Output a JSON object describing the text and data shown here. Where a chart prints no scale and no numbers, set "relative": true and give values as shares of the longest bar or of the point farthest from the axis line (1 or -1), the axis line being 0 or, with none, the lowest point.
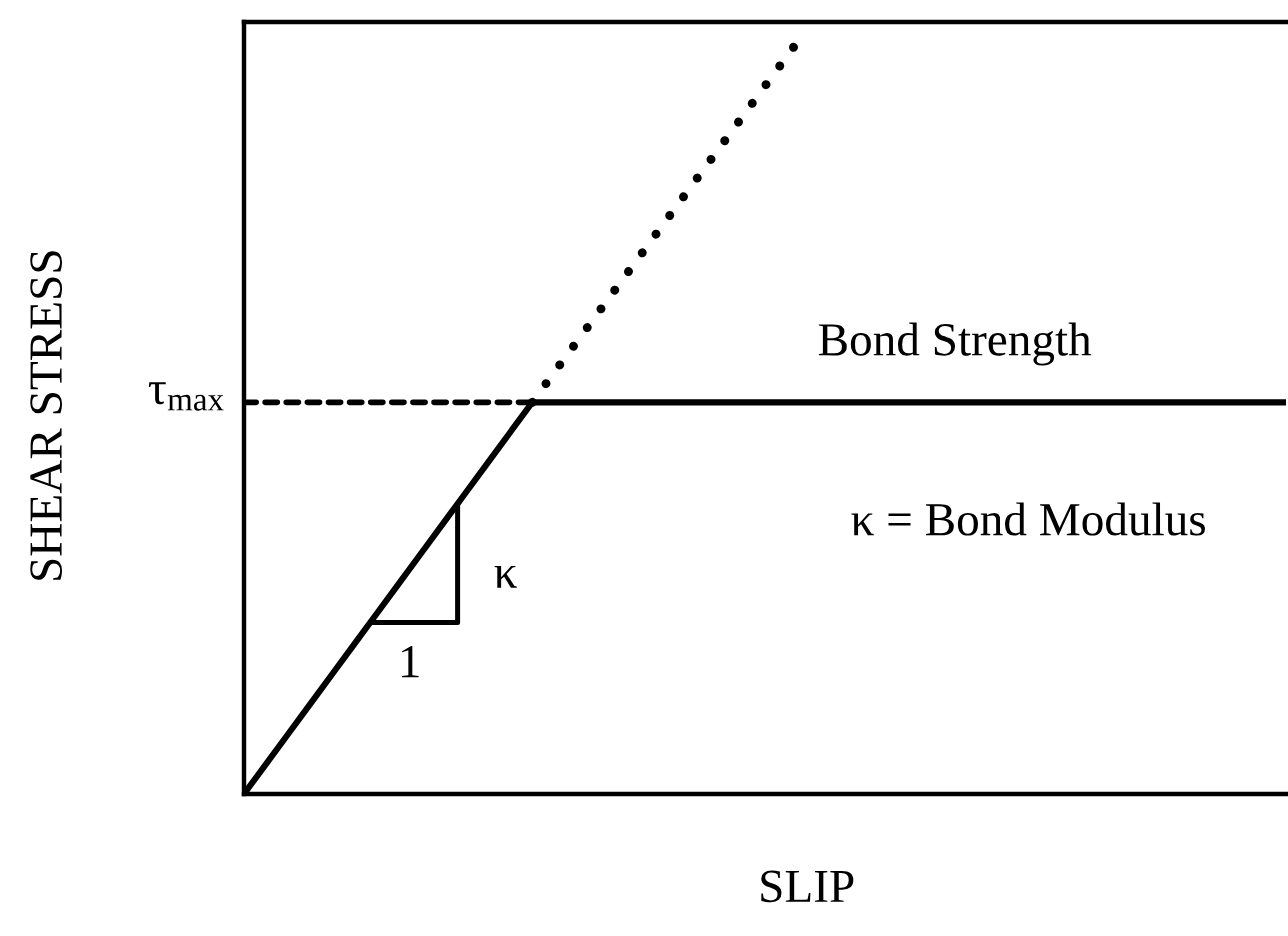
{
  "chart_data": {
    "type": "line",
    "relative": true,
    "xlabel": "SLIP",
    "ylabel": "SHEAR STRESS",
    "categories": [
      null,
      null,
      null,
      null,
      null,
      null,
      null,
      null,
      null,
      null,
      null,
      null,
      null,
      null,
      null,
      null,
      null,
      null,
      null,
      null,
      null,
      null,
      null,
      null,
      null,
      null,
      null,
      null,
      null,
      null,
      null,
      null,
      null,
      null,
      null,
      null,
      null,
      null,
      null,
      null,
      null,
      null,
      null,
      null,
      null,
      null,
      null,
      null
    ],
    "series": [
      {
        "color": "#000000",
        "line_style": "solid",
        "values": [
          0,
          0.04,
          0.08,
          0.12,
          0.16,
          0.2,
          0.24,
          0.28,
          0.32,
          0.36,
          0.4,
          0.44,
          0.48,
          0.52,
          0.52,
          0.52,
          0.52,
          0.52,
          0.52,
          0.52,
          0.52,
          0.52,
          0.52,
          0.52,
          0.52,
          0.52,
          0.52,
          0.52,
          0.52,
          0.52,
          0.52,
          0.52,
          0.52,
          0.52,
          0.52,
          0.52,
          0.52,
          0.52,
          0.52,
          0.52,
          0.52,
          0.52,
          0.52,
          0.52,
          0.52,
          0.52,
          0.52,
          0.52
        ]
      },
      {
        "color": "#000000",
        "line_style": "dotted",
        "values": [
          null,
          null,
          null,
          null,
          null,
          null,
          null,
          null,
          null,
          null,
          null,
          null,
          null,
          0.52,
          0.56,
          0.6,
          0.64,
          0.68,
          0.72,
          0.76,
          0.8,
          0.84,
          0.88,
          0.92,
          0.96,
          1,
          null,
          null,
          null,
          null,
          null,
          null,
          null,
          null,
          null,
          null,
          null,
          null,
          null,
          null,
          null,
          null,
          null,
          null,
          null,
          null,
          null,
          null
        ]
      },
      {
        "color": "#000000",
        "line_style": "dashed",
        "values": [
          0.52,
          0.52,
          0.52,
          0.52,
          0.52,
          0.52,
          0.52,
          0.52,
          0.52,
          0.52,
          0.52,
          0.52,
          0.52,
          0.52,
          null,
          null,
          null,
          null,
          null,
          null,
          null,
          null,
          null,
          null,
          null,
          null,
          null,
          null,
          null,
          null,
          null,
          null,
          null,
          null,
          null,
          null,
          null,
          null,
          null,
          null,
          null,
          null,
          null,
          null,
          null,
          null,
          null,
          null
        ]
      }
    ],
    "annotations": [
      "τ$_{max}$",
      {
        "text": "Bond Strength",
        "y": 0.52
      },
      "κ",
      "1",
      "κ = Bond Modulus"
    ]
  }
}
